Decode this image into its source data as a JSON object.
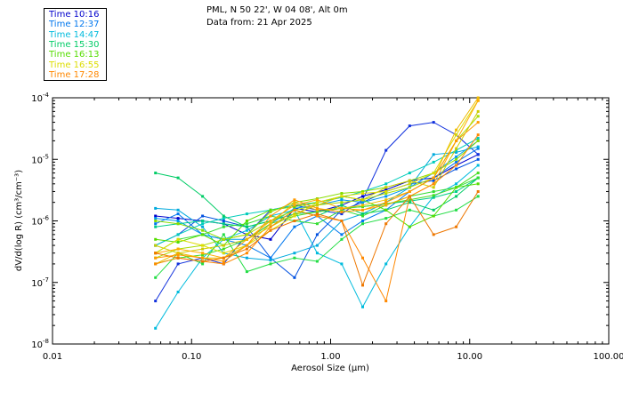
{
  "header": {
    "line1": "PML, N 50 22', W 04 08', Alt 0m",
    "line2": "Data from: 21 Apr 2025"
  },
  "legend": [
    {
      "label": "Time 10:16",
      "color": "#0000cc"
    },
    {
      "label": "Time 12:37",
      "color": "#0077ee"
    },
    {
      "label": "Time 14:47",
      "color": "#00bbdd"
    },
    {
      "label": "Time 15:30",
      "color": "#00cc66"
    },
    {
      "label": "Time 16:13",
      "color": "#55dd00"
    },
    {
      "label": "Time 16:55",
      "color": "#dddd00"
    },
    {
      "label": "Time 17:28",
      "color": "#ff8800"
    }
  ],
  "chart_data": {
    "type": "line",
    "x_scale": "log",
    "y_scale": "log",
    "xlim": [
      0.01,
      100
    ],
    "ylim": [
      1e-08,
      0.0001
    ],
    "xlabel": "Aerosol Size (μm)",
    "ylabel": "dV/d(log R) (cm³/cm⁻³)",
    "x_tick_labels": [
      "0.01",
      "0.10",
      "1.00",
      "10.00",
      "100.00"
    ],
    "y_ticks": [
      {
        "base": "10",
        "exp": "-4"
      },
      {
        "base": "10",
        "exp": "-5"
      },
      {
        "base": "10",
        "exp": "-6"
      },
      {
        "base": "10",
        "exp": "-7"
      },
      {
        "base": "10",
        "exp": "-8"
      }
    ],
    "x": [
      0.055,
      0.08,
      0.12,
      0.17,
      0.25,
      0.37,
      0.55,
      0.8,
      1.2,
      1.7,
      2.5,
      3.7,
      5.5,
      8.0,
      11.5
    ],
    "series": [
      {
        "color": "#0000cc",
        "values": [
          1.2e-06,
          1.1e-06,
          1e-06,
          9e-07,
          6e-07,
          5e-07,
          1.6e-06,
          1.4e-06,
          1.8e-06,
          2.5e-06,
          3.2e-06,
          4.5e-06,
          5e-06,
          8e-06,
          1.2e-05
        ]
      },
      {
        "color": "#1030dd",
        "values": [
          5e-08,
          2e-07,
          2.5e-07,
          2e-07,
          6e-07,
          1.5e-06,
          1.8e-06,
          1.5e-06,
          1.3e-06,
          2.2e-06,
          1.4e-05,
          3.5e-05,
          4e-05,
          2.5e-05,
          1.2e-05
        ]
      },
      {
        "color": "#0050e0",
        "values": [
          4e-07,
          6e-07,
          1.2e-06,
          1e-06,
          8e-07,
          2.5e-07,
          1.2e-07,
          6e-07,
          1.5e-06,
          2e-06,
          3e-06,
          4e-06,
          4.5e-06,
          7e-06,
          1e-05
        ]
      },
      {
        "color": "#0077ee",
        "values": [
          9e-07,
          1.3e-06,
          6e-07,
          5e-07,
          4e-07,
          2.5e-07,
          8e-07,
          1.2e-06,
          6e-07,
          1e-06,
          1.5e-06,
          3e-06,
          5e-06,
          9e-06,
          1.5e-05
        ]
      },
      {
        "color": "#0099ee",
        "values": [
          1.1e-06,
          1e-06,
          6e-07,
          5e-07,
          5e-07,
          9e-07,
          1.6e-06,
          1.8e-06,
          2.2e-06,
          2e-06,
          2.5e-06,
          3.5e-06,
          6e-06,
          1.1e-05,
          2e-05
        ]
      },
      {
        "color": "#00aadd",
        "values": [
          1.6e-06,
          1.5e-06,
          8e-07,
          3e-07,
          2.5e-07,
          2.3e-07,
          3e-07,
          4e-07,
          1e-06,
          1.3e-06,
          2e-06,
          3.5e-06,
          1.2e-05,
          1.3e-05,
          1.6e-05
        ]
      },
      {
        "color": "#00bbdd",
        "values": [
          1.8e-08,
          7e-08,
          2.5e-07,
          5e-07,
          7e-07,
          1.2e-06,
          1.5e-06,
          3e-07,
          2e-07,
          4e-08,
          2e-07,
          8e-07,
          2.5e-06,
          4e-06,
          8e-06
        ]
      },
      {
        "color": "#00ccbb",
        "values": [
          4e-07,
          6e-07,
          9e-07,
          1.1e-06,
          1.3e-06,
          1.5e-06,
          1.8e-06,
          2e-06,
          2.4e-06,
          3e-06,
          4e-06,
          6e-06,
          9e-06,
          1.4e-05,
          2.2e-05
        ]
      },
      {
        "color": "#00cc88",
        "values": [
          8e-07,
          9e-07,
          1e-06,
          9e-07,
          8e-07,
          1e-06,
          1.3e-06,
          1.4e-06,
          1.6e-06,
          1.7e-06,
          1.9e-06,
          2.1e-06,
          2.4e-06,
          3e-06,
          5e-06
        ]
      },
      {
        "color": "#00cc66",
        "values": [
          6e-06,
          5e-06,
          2.5e-06,
          1.2e-06,
          8e-07,
          1e-06,
          1.5e-06,
          1.2e-06,
          1.8e-06,
          1.3e-06,
          1.5e-06,
          2e-06,
          1.5e-06,
          2.5e-06,
          5e-06
        ]
      },
      {
        "color": "#22dd44",
        "values": [
          1.2e-07,
          3e-07,
          2e-07,
          6e-07,
          1.5e-07,
          2e-07,
          2.5e-07,
          2.2e-07,
          5e-07,
          9e-07,
          1.1e-06,
          1.5e-06,
          1.2e-06,
          1.5e-06,
          2.5e-06
        ]
      },
      {
        "color": "#33dd33",
        "values": [
          3e-07,
          5e-07,
          6e-07,
          8e-07,
          9e-07,
          1.2e-06,
          1e-06,
          9e-07,
          1.5e-06,
          1.2e-06,
          1.8e-06,
          2.5e-06,
          3e-06,
          3.5e-06,
          5e-06
        ]
      },
      {
        "color": "#44dd22",
        "values": [
          2e-07,
          2.5e-07,
          2.8e-07,
          3.5e-07,
          5e-07,
          9e-07,
          1.2e-06,
          1.4e-06,
          1.6e-06,
          1.7e-06,
          1.9e-06,
          2.2e-06,
          2.6e-06,
          3.5e-06,
          6e-06
        ]
      },
      {
        "color": "#55dd00",
        "values": [
          5e-07,
          4.5e-07,
          6e-07,
          4e-07,
          1e-06,
          1.5e-06,
          1.7e-06,
          2e-06,
          2.5e-06,
          2.2e-06,
          1.5e-06,
          8e-07,
          1.2e-06,
          3.5e-06,
          4e-06
        ]
      },
      {
        "color": "#88dd00",
        "values": [
          1e-06,
          9e-07,
          7e-07,
          5e-07,
          6e-07,
          1.4e-06,
          2e-06,
          2.3e-06,
          2.8e-06,
          3e-06,
          3.5e-06,
          4.5e-06,
          6e-06,
          1e-05,
          2e-05
        ]
      },
      {
        "color": "#aadd00",
        "values": [
          2.5e-07,
          3.5e-07,
          4e-07,
          5e-07,
          6e-07,
          1e-06,
          1.5e-06,
          1.8e-06,
          2e-06,
          2.2e-06,
          2.8e-06,
          3.5e-06,
          5e-06,
          2e-05,
          5e-05
        ]
      },
      {
        "color": "#cccc00",
        "values": [
          4e-07,
          3e-07,
          3.5e-07,
          4e-07,
          5e-07,
          8e-07,
          1.3e-06,
          1.8e-06,
          2.5e-06,
          2.2e-06,
          3.5e-06,
          4.5e-06,
          3.5e-06,
          1.5e-05,
          6e-05
        ]
      },
      {
        "color": "#dddd00",
        "values": [
          3e-07,
          5e-07,
          4e-07,
          3e-07,
          4e-07,
          7e-07,
          1.2e-06,
          2e-06,
          2.5e-06,
          2.8e-06,
          3e-06,
          4e-06,
          6e-06,
          2.5e-05,
          9e-05
        ]
      },
      {
        "color": "#eebb00",
        "values": [
          2e-07,
          3e-07,
          2.5e-07,
          2.5e-07,
          4e-07,
          9e-07,
          2e-06,
          1.5e-06,
          1.6e-06,
          1.8e-06,
          2.2e-06,
          3e-06,
          5e-06,
          3e-05,
          0.0001
        ]
      },
      {
        "color": "#ffaa00",
        "values": [
          3e-07,
          3.5e-07,
          3e-07,
          2.5e-07,
          5e-07,
          1e-06,
          1.8e-06,
          2.2e-06,
          1.6e-06,
          1.5e-06,
          1.8e-06,
          2.5e-06,
          4e-06,
          2e-05,
          9e-05
        ]
      },
      {
        "color": "#ff9900",
        "values": [
          2.5e-07,
          2.8e-07,
          2.5e-07,
          2.2e-07,
          4e-07,
          1.2e-06,
          2.2e-06,
          1.6e-06,
          1.4e-06,
          1.5e-06,
          2e-06,
          3e-06,
          5e-06,
          2e-05,
          4e-05
        ]
      },
      {
        "color": "#ff8800",
        "values": [
          2e-07,
          2.5e-07,
          2.2e-07,
          2e-07,
          3e-07,
          8e-07,
          1.5e-06,
          1.2e-06,
          1e-06,
          2.5e-07,
          5e-08,
          2.5e-06,
          4e-06,
          8e-06,
          2.5e-05
        ]
      },
      {
        "color": "#ee7700",
        "values": [
          3e-07,
          2.5e-07,
          2.2e-07,
          2.5e-07,
          3.5e-07,
          7e-07,
          1e-06,
          1.3e-06,
          1e-06,
          9e-08,
          9e-07,
          2.5e-06,
          6e-07,
          8e-07,
          3e-06
        ]
      }
    ]
  }
}
